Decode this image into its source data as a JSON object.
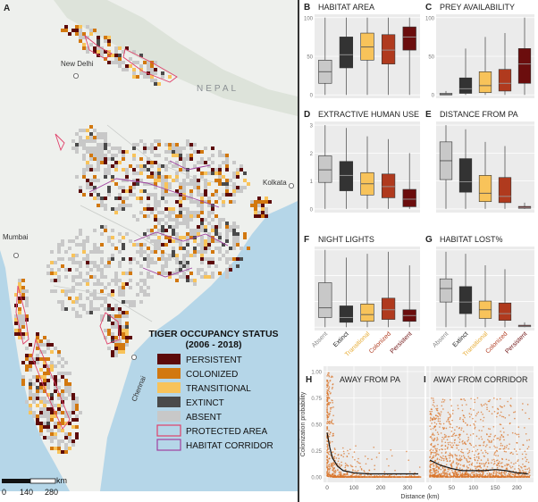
{
  "map": {
    "panel_letter": "A",
    "cities": [
      "New Delhi",
      "Kolkata",
      "Mumbai",
      "Chennai"
    ],
    "country_label": "NEPAL",
    "legend_title_line1": "TIGER OCCUPANCY STATUS",
    "legend_title_line2": "(2006 - 2018)",
    "legend_items": [
      {
        "label": "PERSISTENT",
        "color": "#5c0a0a"
      },
      {
        "label": "COLONIZED",
        "color": "#d2780f"
      },
      {
        "label": "TRANSITIONAL",
        "color": "#f8c35a"
      },
      {
        "label": "EXTINCT",
        "color": "#4a4a4a"
      },
      {
        "label": "ABSENT",
        "color": "#c8c8c8"
      }
    ],
    "legend_lines": [
      {
        "label": "PROTECTED AREA",
        "color": "#e0406a"
      },
      {
        "label": "HABITAT CORRIDOR",
        "color": "#a040a0"
      }
    ],
    "scale_ticks": [
      "0",
      "140",
      "280"
    ],
    "scale_unit": "km"
  },
  "chart_data": [
    {
      "id": "B",
      "type": "box",
      "title": "HABITAT AREA",
      "ylim": [
        0,
        100
      ],
      "yticks": [
        "0",
        "50",
        "100"
      ],
      "categories": [
        "Absent",
        "Extinct",
        "Transitional",
        "Colonized",
        "Persistent"
      ],
      "boxes": [
        [
          0,
          15,
          30,
          45,
          100
        ],
        [
          0,
          35,
          52,
          75,
          100
        ],
        [
          0,
          45,
          62,
          80,
          100
        ],
        [
          0,
          40,
          58,
          78,
          100
        ],
        [
          0,
          58,
          75,
          88,
          100
        ]
      ]
    },
    {
      "id": "C",
      "type": "box",
      "title": "PREY AVAILABILITY",
      "ylim": [
        0,
        100
      ],
      "yticks": [
        "0",
        "50",
        "100"
      ],
      "categories": [
        "Absent",
        "Extinct",
        "Transitional",
        "Colonized",
        "Persistent"
      ],
      "boxes": [
        [
          0,
          0,
          1,
          2,
          5
        ],
        [
          0,
          2,
          8,
          22,
          60
        ],
        [
          0,
          3,
          12,
          30,
          75
        ],
        [
          0,
          5,
          15,
          33,
          80
        ],
        [
          0,
          15,
          40,
          60,
          100
        ]
      ]
    },
    {
      "id": "D",
      "type": "box",
      "title": "EXTRACTIVE HUMAN USE",
      "ylim": [
        0,
        3
      ],
      "yticks": [
        "0",
        "1",
        "2",
        "3"
      ],
      "categories": [
        "Absent",
        "Extinct",
        "Transitional",
        "Colonized",
        "Persistent"
      ],
      "boxes": [
        [
          0,
          0.95,
          1.4,
          1.9,
          3.0
        ],
        [
          0,
          0.65,
          1.2,
          1.7,
          2.9
        ],
        [
          0,
          0.5,
          0.9,
          1.3,
          2.6
        ],
        [
          0,
          0.4,
          0.8,
          1.25,
          2.5
        ],
        [
          0,
          0.08,
          0.35,
          0.7,
          2.0
        ]
      ]
    },
    {
      "id": "E",
      "type": "box",
      "title": "DISTANCE FROM PA",
      "ylim": [
        0,
        4
      ],
      "yticks": [
        "",
        "",
        "",
        ""
      ],
      "categories": [
        "Absent",
        "Extinct",
        "Transitional",
        "Colonized",
        "Persistent"
      ],
      "boxes": [
        [
          0,
          1.4,
          2.3,
          3.2,
          4.0
        ],
        [
          0,
          0.8,
          1.3,
          2.4,
          3.8
        ],
        [
          0,
          0.35,
          0.75,
          1.6,
          3.2
        ],
        [
          0,
          0.3,
          0.6,
          1.5,
          3.0
        ],
        [
          0,
          0.03,
          0.07,
          0.12,
          0.3
        ]
      ]
    },
    {
      "id": "F",
      "type": "box",
      "title": "NIGHT LIGHTS",
      "ylim": [
        0,
        4
      ],
      "yticks": [
        "",
        "",
        "",
        ""
      ],
      "categories": [
        "Absent",
        "Extinct",
        "Transitional",
        "Colonized",
        "Persistent"
      ],
      "boxes": [
        [
          0,
          0.5,
          1.0,
          2.3,
          4.0
        ],
        [
          0,
          0.25,
          0.5,
          1.1,
          3.6
        ],
        [
          0,
          0.3,
          0.65,
          1.2,
          3.8
        ],
        [
          0,
          0.4,
          0.9,
          1.5,
          3.9
        ],
        [
          0,
          0.3,
          0.6,
          0.9,
          3.2
        ]
      ]
    },
    {
      "id": "G",
      "type": "box",
      "title": "HABITAT LOST%",
      "ylim": [
        0,
        4
      ],
      "yticks": [
        "",
        "",
        "",
        ""
      ],
      "categories": [
        "Absent",
        "Extinct",
        "Transitional",
        "Colonized",
        "Persistent"
      ],
      "boxes": [
        [
          0,
          1.3,
          2.0,
          2.5,
          3.9
        ],
        [
          0,
          0.7,
          1.3,
          2.1,
          3.8
        ],
        [
          0,
          0.45,
          0.9,
          1.35,
          3.2
        ],
        [
          0,
          0.35,
          0.7,
          1.25,
          3.0
        ],
        [
          0,
          0.02,
          0.05,
          0.1,
          0.25
        ]
      ]
    },
    {
      "id": "H",
      "type": "scatter",
      "title": "AWAY FROM PA",
      "ylabel": "Colonization probability",
      "xlim": [
        0,
        350
      ],
      "ylim": [
        0,
        1
      ],
      "xticks": [
        0,
        100,
        200,
        300
      ],
      "yticks": [
        "0.00",
        "0.25",
        "0.50",
        "0.75",
        "1.00"
      ],
      "trend_x": [
        0,
        10,
        20,
        40,
        60,
        100,
        150,
        200,
        250,
        300,
        340
      ],
      "trend_y": [
        0.42,
        0.28,
        0.18,
        0.1,
        0.06,
        0.04,
        0.03,
        0.03,
        0.03,
        0.03,
        0.03
      ]
    },
    {
      "id": "I",
      "type": "scatter",
      "title": "AWAY FROM CORRIDOR",
      "xlabel": "Distance (km)",
      "xlim": [
        0,
        230
      ],
      "ylim": [
        0,
        1
      ],
      "xticks": [
        0,
        50,
        100,
        150,
        200
      ],
      "trend_x": [
        0,
        25,
        50,
        75,
        100,
        125,
        150,
        175,
        200,
        225
      ],
      "trend_y": [
        0.16,
        0.11,
        0.08,
        0.06,
        0.06,
        0.06,
        0.07,
        0.06,
        0.04,
        0.03
      ]
    }
  ],
  "colors": {
    "absent": "#c8c8c8",
    "extinct": "#333333",
    "transitional": "#f8c35a",
    "colonized": "#b03a1e",
    "persistent": "#6b0d0d",
    "scatter": "#d9742a"
  }
}
